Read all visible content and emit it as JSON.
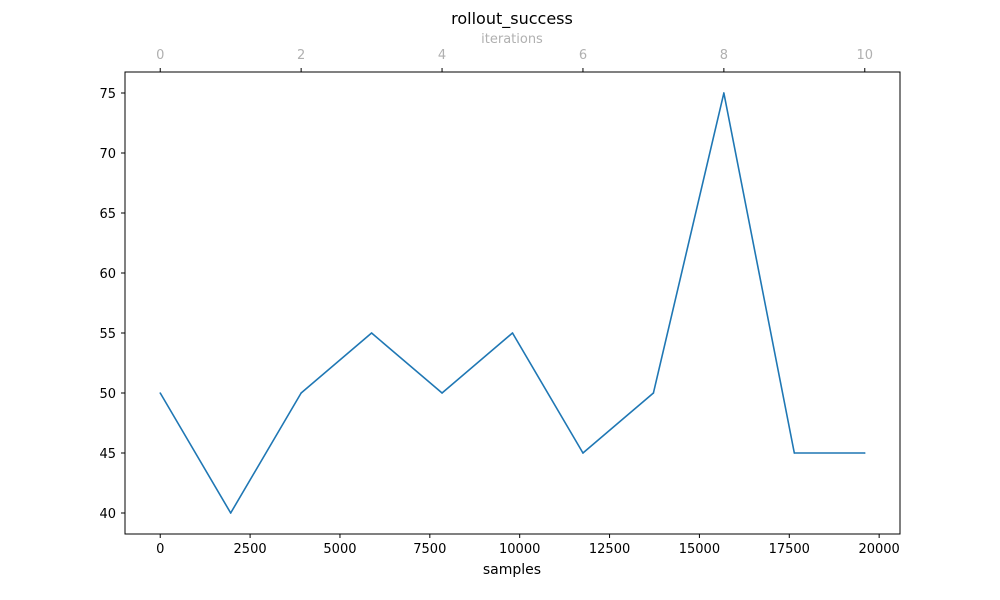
{
  "chart_data": {
    "type": "line",
    "title": "rollout_success",
    "xlabel": "samples",
    "ylabel": "",
    "top_xlabel": "iterations",
    "series": [
      {
        "color": "#1f77b4",
        "x": [
          0,
          1960,
          3920,
          5880,
          7840,
          9800,
          11760,
          13720,
          15680,
          17640,
          19600
        ],
        "y": [
          50,
          40,
          50,
          55,
          50,
          55,
          45,
          50,
          75,
          45,
          45
        ]
      }
    ],
    "xlim": [
      -980,
      20580
    ],
    "ylim": [
      38.25,
      76.75
    ],
    "x_ticks": [
      0,
      2500,
      5000,
      7500,
      10000,
      12500,
      15000,
      17500,
      20000
    ],
    "x_tick_labels": [
      "0",
      "2500",
      "5000",
      "7500",
      "10000",
      "12500",
      "15000",
      "17500",
      "20000"
    ],
    "y_ticks": [
      40,
      45,
      50,
      55,
      60,
      65,
      70,
      75
    ],
    "y_tick_labels": [
      "40",
      "45",
      "50",
      "55",
      "60",
      "65",
      "70",
      "75"
    ],
    "top_xlim": [
      -0.5,
      10.5
    ],
    "top_x_ticks": [
      0,
      2,
      4,
      6,
      8,
      10
    ],
    "top_x_tick_labels": [
      "0",
      "2",
      "4",
      "6",
      "8",
      "10"
    ],
    "top_axis_color": "#b0b0b0",
    "grid": false,
    "legend": "none"
  }
}
